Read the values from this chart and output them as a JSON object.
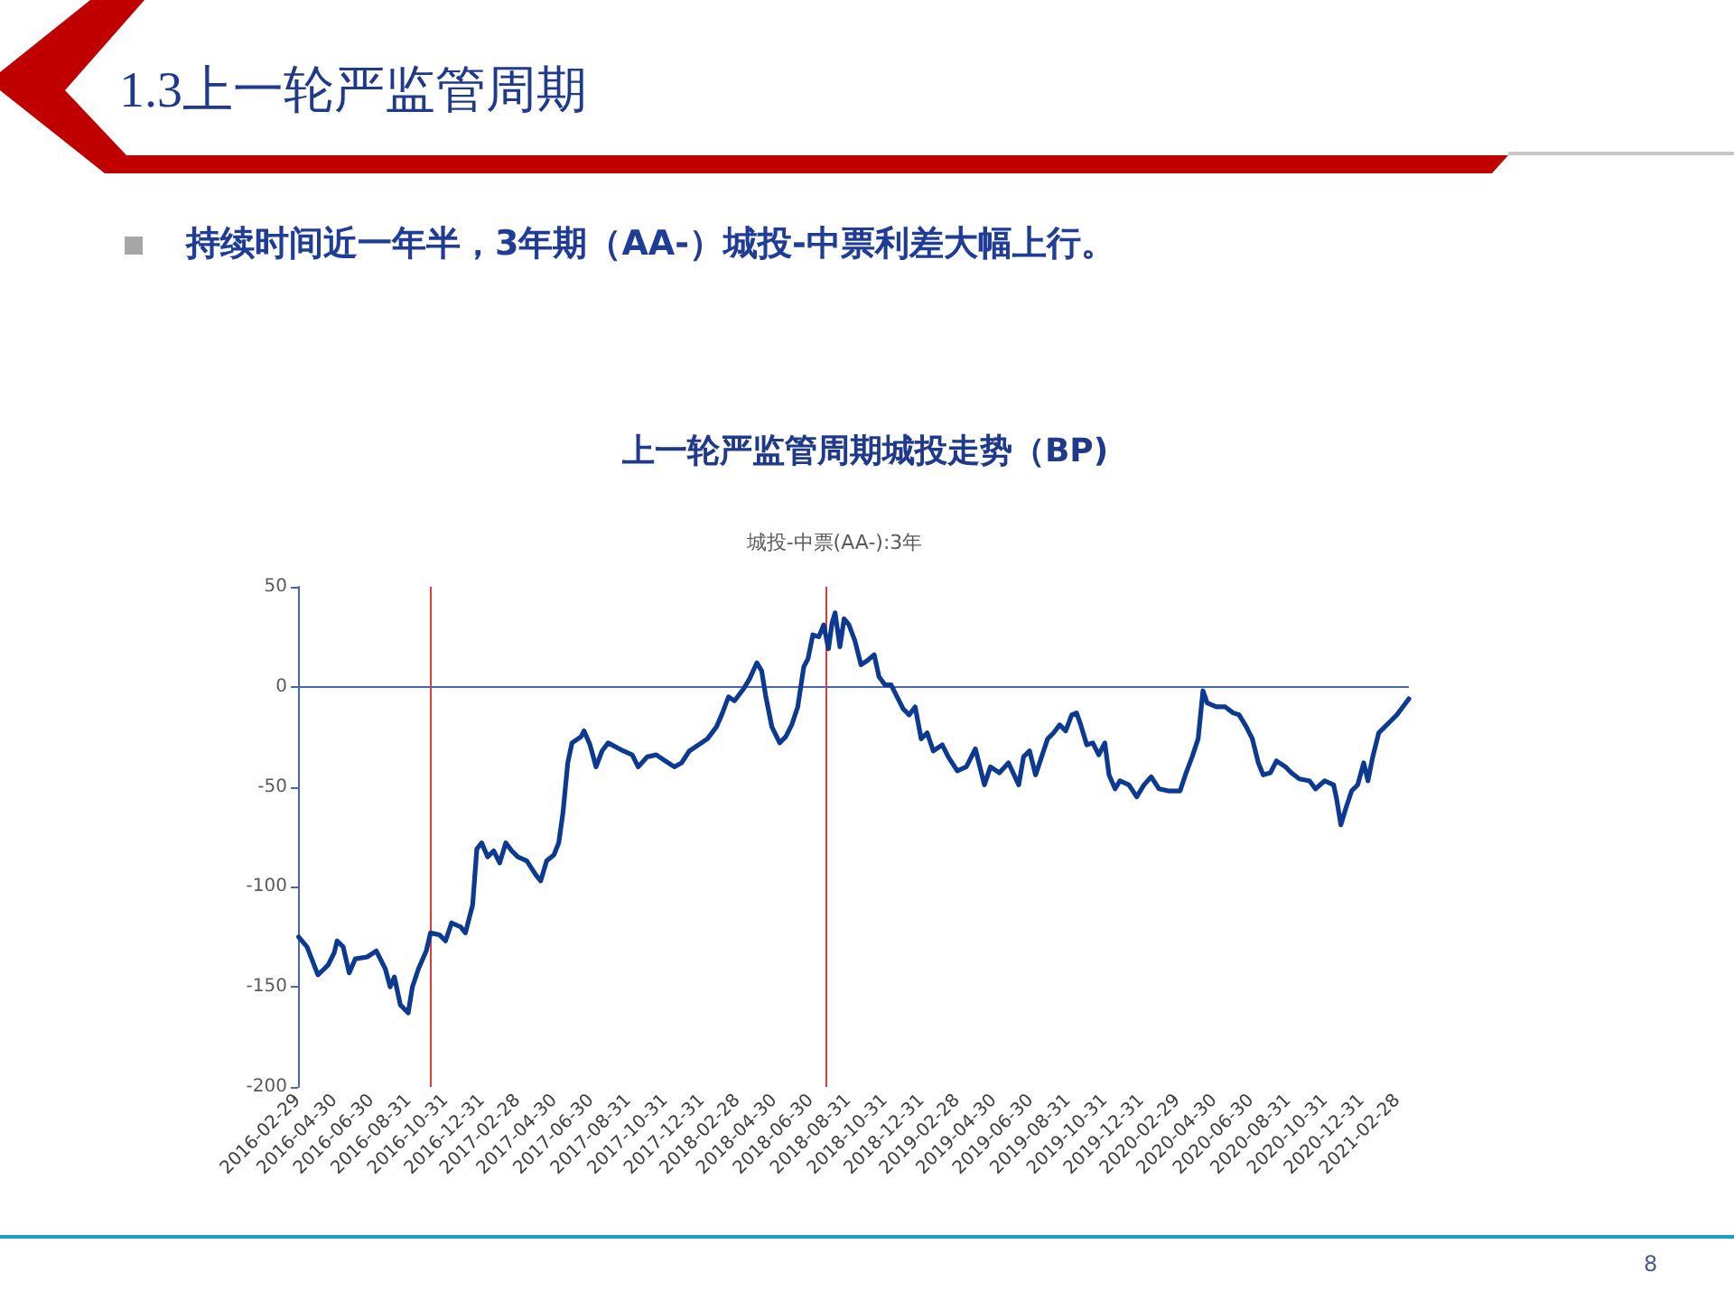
{
  "chart_data": {
    "type": "line",
    "title": "上一轮严监管周期城投走势（BP)",
    "subtitle": "城投-中票(AA-):3年",
    "annotations": [
      "1.3上一轮严监管周期",
      "持续时间近一年半，3年期（AA-）城投-中票利差大幅上行。",
      "8"
    ],
    "x": [
      "2016-03-01",
      "2016-03-15",
      "2016-04-02",
      "2016-04-09",
      "2016-04-19",
      "2016-04-29",
      "2016-05-04",
      "2016-05-14",
      "2016-05-24",
      "2016-06-03",
      "2016-06-23",
      "2016-07-08",
      "2016-07-23",
      "2016-07-31",
      "2016-08-07",
      "2016-08-17",
      "2016-08-30",
      "2016-09-06",
      "2016-09-16",
      "2016-09-29",
      "2016-10-06",
      "2016-10-21",
      "2016-10-31",
      "2016-11-10",
      "2016-11-25",
      "2016-12-03",
      "2016-12-15",
      "2016-12-22",
      "2016-12-30",
      "2017-01-09",
      "2017-01-19",
      "2017-01-29",
      "2017-02-08",
      "2017-02-18",
      "2017-02-28",
      "2017-03-15",
      "2017-03-30",
      "2017-04-07",
      "2017-04-17",
      "2017-04-29",
      "2017-05-07",
      "2017-05-14",
      "2017-05-22",
      "2017-05-29",
      "2017-06-13",
      "2017-06-18",
      "2017-06-28",
      "2017-07-08",
      "2017-07-18",
      "2017-07-28",
      "2017-08-22",
      "2017-09-06",
      "2017-09-16",
      "2017-10-01",
      "2017-10-16",
      "2017-10-31",
      "2017-11-15",
      "2017-11-27",
      "2017-12-10",
      "2017-12-25",
      "2018-01-09",
      "2018-01-24",
      "2018-02-03",
      "2018-02-13",
      "2018-02-23",
      "2018-03-10",
      "2018-03-20",
      "2018-04-01",
      "2018-04-09",
      "2018-04-16",
      "2018-04-26",
      "2018-05-09",
      "2018-05-19",
      "2018-05-29",
      "2018-06-08",
      "2018-06-18",
      "2018-06-25",
      "2018-07-03",
      "2018-07-13",
      "2018-07-21",
      "2018-07-29",
      "2018-08-04",
      "2018-08-09",
      "2018-08-17",
      "2018-08-24",
      "2018-09-01",
      "2018-09-11",
      "2018-09-21",
      "2018-10-01",
      "2018-10-13",
      "2018-10-21",
      "2018-10-31",
      "2018-11-10",
      "2018-11-20",
      "2018-11-30",
      "2018-12-10",
      "2018-12-20",
      "2018-12-30",
      "2019-01-09",
      "2019-01-19",
      "2019-02-03",
      "2019-02-13",
      "2019-02-28",
      "2019-03-15",
      "2019-03-30",
      "2019-04-14",
      "2019-04-24",
      "2019-05-09",
      "2019-05-24",
      "2019-06-10",
      "2019-06-18",
      "2019-06-28",
      "2019-07-08",
      "2019-07-18",
      "2019-07-28",
      "2019-08-07",
      "2019-08-17",
      "2019-08-27",
      "2019-09-06",
      "2019-09-14",
      "2019-09-21",
      "2019-10-01",
      "2019-10-11",
      "2019-10-21",
      "2019-10-31",
      "2019-11-07",
      "2019-11-17",
      "2019-11-25",
      "2019-12-10",
      "2019-12-23",
      "2020-01-04",
      "2020-01-16",
      "2020-01-29",
      "2020-02-13",
      "2020-03-04",
      "2020-03-14",
      "2020-03-24",
      "2020-04-03",
      "2020-04-11",
      "2020-04-18",
      "2020-05-03",
      "2020-05-18",
      "2020-05-31",
      "2020-06-10",
      "2020-06-22",
      "2020-07-02",
      "2020-07-12",
      "2020-07-20",
      "2020-08-01",
      "2020-08-11",
      "2020-08-26",
      "2020-09-05",
      "2020-09-18",
      "2020-10-05",
      "2020-10-15",
      "2020-10-30",
      "2020-11-14",
      "2020-11-19",
      "2020-11-26",
      "2020-12-04",
      "2020-12-14",
      "2020-12-24",
      "2021-01-03",
      "2021-01-10",
      "2021-01-18",
      "2021-01-28",
      "2021-02-07",
      "2021-02-17",
      "2021-02-27",
      "2021-03-09",
      "2021-03-19"
    ],
    "values": [
      -125,
      -130,
      -144,
      -142,
      -139,
      -133,
      -127,
      -130,
      -143,
      -136,
      -135,
      -132,
      -141,
      -150,
      -145,
      -159,
      -163,
      -150,
      -141,
      -132,
      -123,
      -124,
      -127,
      -118,
      -120,
      -123,
      -109,
      -81,
      -78,
      -85,
      -82,
      -88,
      -78,
      -82,
      -85,
      -87,
      -94,
      -97,
      -87,
      -84,
      -78,
      -63,
      -38,
      -28,
      -25,
      -22,
      -29,
      -40,
      -32,
      -28,
      -32,
      -34,
      -40,
      -35,
      -34,
      -37,
      -40,
      -38,
      -32,
      -29,
      -26,
      -20,
      -13,
      -5,
      -7,
      -1,
      4,
      12,
      8,
      -5,
      -20,
      -28,
      -25,
      -19,
      -10,
      10,
      14,
      26,
      25,
      31,
      19,
      32,
      37,
      20,
      34,
      31,
      23,
      11,
      13,
      16,
      5,
      1,
      1,
      -5,
      -11,
      -14,
      -10,
      -26,
      -23,
      -32,
      -29,
      -35,
      -42,
      -40,
      -31,
      -49,
      -40,
      -43,
      -38,
      -49,
      -35,
      -32,
      -44,
      -35,
      -26,
      -23,
      -19,
      -22,
      -14,
      -13,
      -19,
      -29,
      -28,
      -34,
      -28,
      -44,
      -51,
      -47,
      -49,
      -55,
      -49,
      -45,
      -51,
      -52,
      -52,
      -43,
      -35,
      -26,
      -2,
      -8,
      -10,
      -10,
      -13,
      -14,
      -20,
      -26,
      -38,
      -44,
      -43,
      -37,
      -40,
      -43,
      -46,
      -47,
      -51,
      -47,
      -49,
      -56,
      -69,
      -61,
      -52,
      -49,
      -38,
      -47,
      -35,
      -23,
      -20,
      -17,
      -14,
      -10,
      -6
    ],
    "color": "#0d3a91",
    "xlim": [
      "2016-02-29",
      "2021-03-19"
    ],
    "xticks": [
      "2016-02-29",
      "2016-04-30",
      "2016-06-30",
      "2016-08-31",
      "2016-10-31",
      "2016-12-31",
      "2017-02-28",
      "2017-04-30",
      "2017-06-30",
      "2017-08-31",
      "2017-10-31",
      "2017-12-31",
      "2018-02-28",
      "2018-04-30",
      "2018-06-30",
      "2018-08-31",
      "2018-10-31",
      "2018-12-31",
      "2019-02-28",
      "2019-04-30",
      "2019-06-30",
      "2019-08-31",
      "2019-10-31",
      "2019-12-31",
      "2020-02-29",
      "2020-04-30",
      "2020-06-30",
      "2020-08-31",
      "2020-10-31",
      "2020-12-31",
      "2021-02-28"
    ],
    "ylim": [
      -200,
      50
    ],
    "yticks": [
      -200,
      -150,
      -100,
      -50,
      0,
      50
    ],
    "ref_lines": [
      {
        "axis": "x",
        "value": "2016-10-06",
        "color": "#e0393e"
      },
      {
        "axis": "x",
        "value": "2018-07-24",
        "color": "#e0393e"
      },
      {
        "axis": "y",
        "value": 0,
        "color": "#4a68a8"
      }
    ],
    "grid": false,
    "marker": "none",
    "line_style": "solid"
  }
}
